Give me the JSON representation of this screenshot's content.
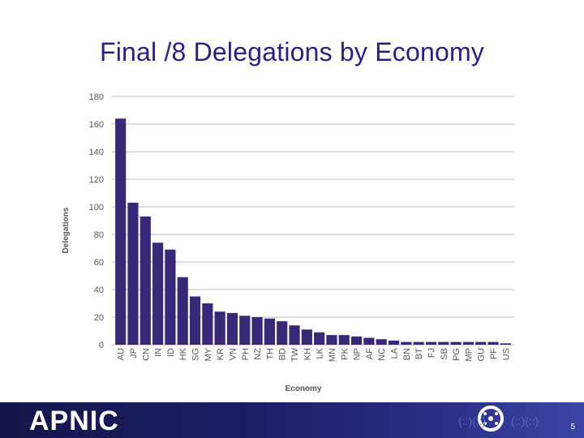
{
  "slide": {
    "title": "Final /8 Delegations by Economy",
    "logo": "APNIC",
    "page_number": "5"
  },
  "colors": {
    "bar": "#3b2777",
    "grid": "#bdbdbd",
    "title": "#2a1f85",
    "footer": "#1b1d63"
  },
  "chart_data": {
    "type": "bar",
    "title": "Final /8 Delegations by Economy",
    "xlabel": "Economy",
    "ylabel": "Delegations",
    "ylim": [
      0,
      180
    ],
    "yticks": [
      0,
      20,
      40,
      60,
      80,
      100,
      120,
      140,
      160,
      180
    ],
    "grid": true,
    "categories": [
      "AU",
      "JP",
      "CN",
      "IN",
      "ID",
      "HK",
      "SG",
      "MY",
      "KR",
      "VN",
      "PH",
      "NZ",
      "TH",
      "BD",
      "TW",
      "KH",
      "LK",
      "MN",
      "PK",
      "NP",
      "AF",
      "NC",
      "LA",
      "BN",
      "BT",
      "FJ",
      "SB",
      "PG",
      "MP",
      "GU",
      "PF",
      "US"
    ],
    "values": [
      164,
      103,
      93,
      74,
      69,
      49,
      35,
      30,
      24,
      23,
      21,
      20,
      19,
      17,
      14,
      11,
      9,
      7,
      7,
      6,
      5,
      4,
      3,
      2,
      2,
      2,
      2,
      2,
      2,
      2,
      2,
      1
    ]
  }
}
